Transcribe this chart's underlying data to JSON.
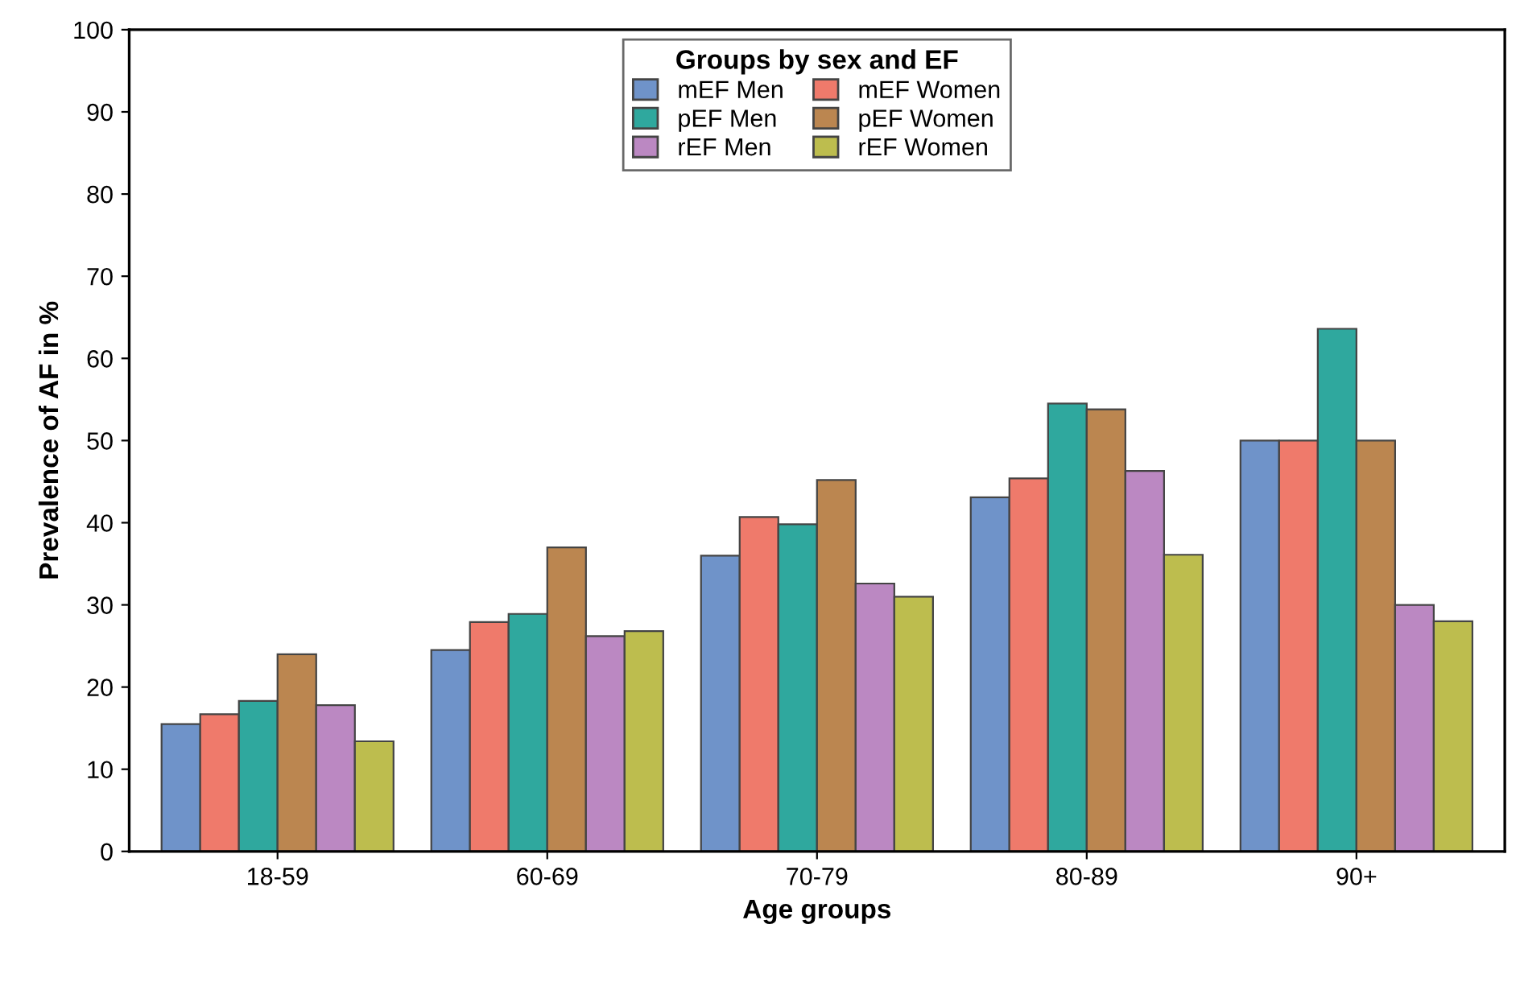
{
  "chart_data": {
    "type": "bar",
    "xlabel": "Age groups",
    "ylabel": "Prevalence of AF in %",
    "legend_title": "Groups by sex and EF",
    "categories": [
      "18-59",
      "60-69",
      "70-79",
      "80-89",
      "90+"
    ],
    "series": [
      {
        "name": "mEF Men",
        "color": "#6f93c9",
        "values": [
          15.5,
          24.5,
          36,
          43.1,
          50
        ]
      },
      {
        "name": "mEF Women",
        "color": "#ef7a6b",
        "values": [
          16.7,
          27.9,
          40.7,
          45.4,
          50
        ]
      },
      {
        "name": "pEF Men",
        "color": "#2fa89e",
        "values": [
          18.3,
          28.9,
          39.8,
          54.5,
          63.6
        ]
      },
      {
        "name": "pEF Women",
        "color": "#bb8650",
        "values": [
          24,
          37,
          45.2,
          53.8,
          50
        ]
      },
      {
        "name": "rEF Men",
        "color": "#bb88c2",
        "values": [
          17.8,
          26.2,
          32.6,
          46.3,
          30
        ]
      },
      {
        "name": "rEF Women",
        "color": "#bdbd4e",
        "values": [
          13.4,
          26.8,
          31,
          36.1,
          28
        ]
      }
    ],
    "ylim": [
      0,
      100
    ],
    "yticks": [
      0,
      10,
      20,
      30,
      40,
      50,
      60,
      70,
      80,
      90,
      100
    ],
    "grid": false,
    "legend": "top"
  }
}
